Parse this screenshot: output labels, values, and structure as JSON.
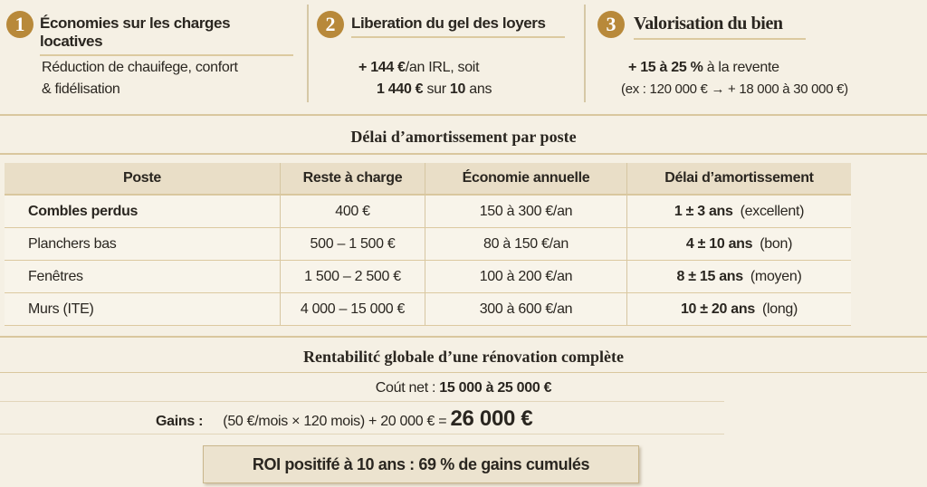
{
  "panels": [
    {
      "number": "1",
      "title": "Économies sur les charges locatives",
      "line1": "Réduction de chauifege, confort",
      "line2": "& fidélisation"
    },
    {
      "number": "2",
      "title": "Liberation du gel des loyers",
      "line1_bold": "+ 144 €",
      "line1_rest": "/an IRL, soit",
      "line2_bold": "1 440 €",
      "line2_mid": " sur ",
      "line2_bold2": "10",
      "line2_rest": " ans"
    },
    {
      "number": "3",
      "title": "Valorisation du bien",
      "line1_bold": "+ 15 à 25 %",
      "line1_rest": " à la revente",
      "line2": "(ex : 120 000 € → + 18 000 à 30 000 €)"
    }
  ],
  "table_section": {
    "title": "Délai d’amortissement par poste",
    "headers": [
      "Poste",
      "Reste à charge",
      "Économie annuelle",
      "Délai d’amortissement"
    ],
    "rows": [
      {
        "poste": "Combles perdus",
        "reste": "400 €",
        "economie": "150 à 300 €/an",
        "delai": "1 ± 3 ans",
        "note": "(excellent)"
      },
      {
        "poste": "Planchers bas",
        "reste": "500 – 1 500 €",
        "economie": "80 à 150 €/an",
        "delai": "4 ± 10 ans",
        "note": "(bon)"
      },
      {
        "poste": "Fenêtres",
        "reste": "1 500 – 2 500 €",
        "economie": "100 à 200 €/an",
        "delai": "8 ± 15 ans",
        "note": "(moyen)"
      },
      {
        "poste": "Murs (ITE)",
        "reste": "4 000 – 15 000 €",
        "economie": "300 à 600 €/an",
        "delai": "10 ± 20 ans",
        "note": "(long)"
      }
    ]
  },
  "rentabilite": {
    "title": "Rentabilitć globale d’une rénovation complète",
    "cout_label": "Coút net : ",
    "cout_value": "15 000 à 25 000 €",
    "gains_label": "Gains :",
    "gains_formula": "(50 €/mois × 120 mois) + 20 000 € = ",
    "gains_total": "26 000 €",
    "roi": "ROI positifé à 10 ans : 69 % de gains cumulés"
  },
  "colors": {
    "accent": "#b8893a",
    "background": "#f5f0e4",
    "header": "#e9dec7"
  }
}
